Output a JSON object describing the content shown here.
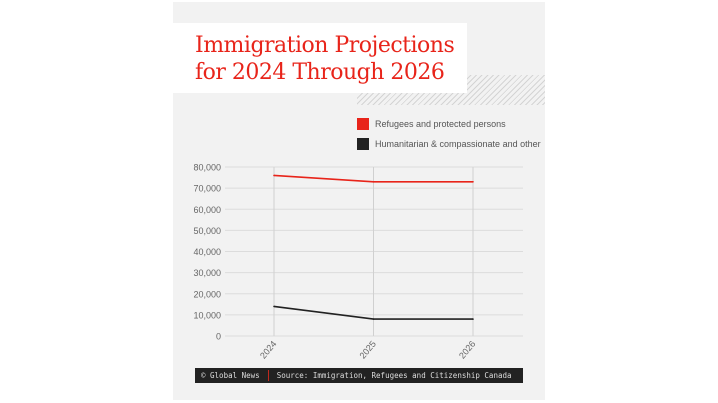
{
  "title_line1": "Immigration Projections",
  "title_line2": "for 2024 Through 2026",
  "footer": {
    "credit": "© Global News",
    "source": "Source: Immigration, Refugees and Citizenship Canada"
  },
  "chart_data": {
    "type": "line",
    "title": "Immigration Projections for 2024 Through 2026",
    "categories": [
      "2024",
      "2025",
      "2026"
    ],
    "ylim": [
      0,
      80000
    ],
    "yticks": [
      "0",
      "10,000",
      "20,000",
      "30,000",
      "40,000",
      "50,000",
      "60,000",
      "70,000",
      "80,000"
    ],
    "grid": true,
    "legend_placement": "top-right",
    "series": [
      {
        "name": "Refugees and protected persons",
        "color": "#e8241a",
        "values": [
          76000,
          73000,
          73000
        ]
      },
      {
        "name": "Humanitarian & compassionate and other",
        "color": "#222222",
        "values": [
          14000,
          8000,
          8000
        ]
      }
    ]
  }
}
